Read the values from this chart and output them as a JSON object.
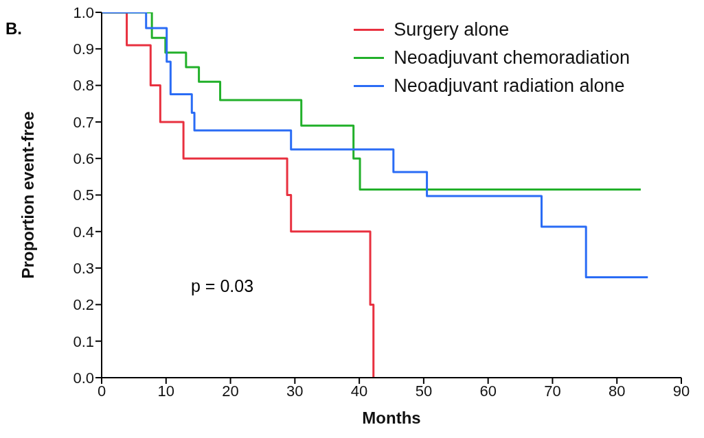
{
  "chart_data": {
    "type": "step",
    "title": "B.",
    "xlabel": "Months",
    "ylabel": "Proportion event-free",
    "series": [
      {
        "name": "Surgery alone",
        "color": "#e8303f",
        "x": [
          0,
          3.9,
          7.6,
          9.1,
          12.7,
          28.8,
          29.4,
          41.7,
          42.2
        ],
        "values": [
          1.0,
          0.91,
          0.8,
          0.7,
          0.6,
          0.5,
          0.4,
          0.2,
          0.0
        ]
      },
      {
        "name": "Neoadjuvant chemoradiation",
        "color": "#22b02a",
        "x": [
          0,
          7.8,
          9.9,
          13.1,
          15.1,
          18.4,
          31.0,
          39.1,
          40.1,
          83.7
        ],
        "values": [
          1.0,
          0.93,
          0.89,
          0.85,
          0.81,
          0.76,
          0.69,
          0.6,
          0.515,
          0.515
        ]
      },
      {
        "name": "Neoadjuvant radiation alone",
        "color": "#2a6cf5",
        "x": [
          0,
          6.9,
          10.1,
          10.7,
          14.0,
          14.4,
          29.4,
          45.3,
          50.5,
          68.3,
          75.2,
          84.8
        ],
        "values": [
          1.0,
          0.957,
          0.865,
          0.776,
          0.725,
          0.677,
          0.625,
          0.563,
          0.497,
          0.413,
          0.275,
          0.275
        ]
      }
    ],
    "xlim": [
      0,
      90
    ],
    "xticks": [
      0,
      10,
      20,
      30,
      40,
      50,
      60,
      70,
      80,
      90
    ],
    "ylim": [
      0,
      1
    ],
    "yticks": [
      {
        "value": 0,
        "label": "0.0"
      },
      {
        "value": 0.1,
        "label": "0.1"
      },
      {
        "value": 0.2,
        "label": "0.2"
      },
      {
        "value": 0.3,
        "label": "0.3"
      },
      {
        "value": 0.4,
        "label": "0.4"
      },
      {
        "value": 0.5,
        "label": "0.5"
      },
      {
        "value": 0.6,
        "label": "0.6"
      },
      {
        "value": 0.7,
        "label": "0.7"
      },
      {
        "value": 0.8,
        "label": "0.8"
      },
      {
        "value": 0.9,
        "label": "0.9"
      },
      {
        "value": 1,
        "label": "1.0"
      }
    ],
    "annotations": [
      "p = 0.03"
    ],
    "legend": "top right",
    "grid": false,
    "marker": "none",
    "line_style": "solid"
  }
}
